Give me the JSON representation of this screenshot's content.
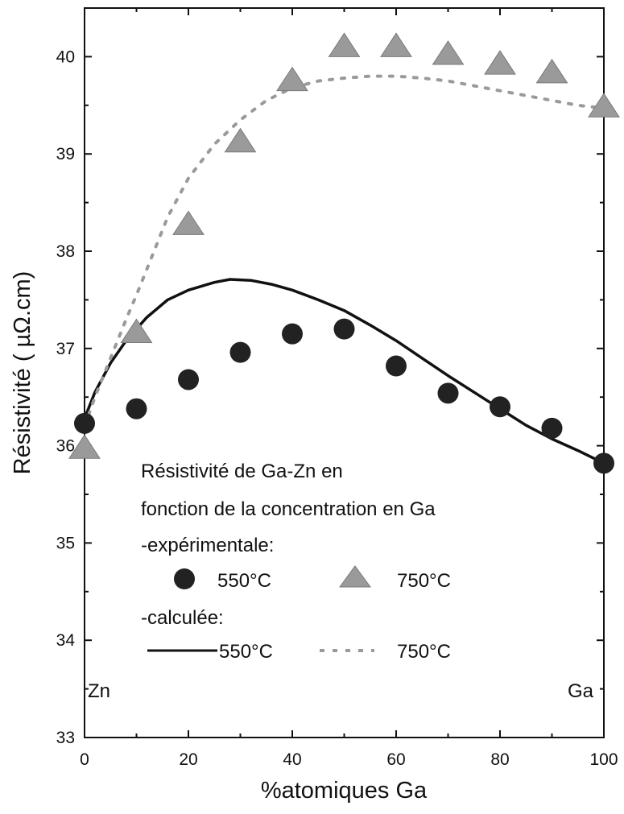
{
  "chart_data": {
    "type": "scatter",
    "title": "",
    "xlabel": "%atomiques Ga",
    "ylabel": "Résistivité ( µΩ.cm)",
    "xlim": [
      0,
      100
    ],
    "ylim": [
      33,
      40.5
    ],
    "x_ticks": [
      0,
      20,
      40,
      60,
      80,
      100
    ],
    "y_ticks": [
      33,
      34,
      35,
      36,
      37,
      38,
      39,
      40
    ],
    "grid": false,
    "legend_position": "bottom-center",
    "legend": {
      "line1": "Résistivité de Ga-Zn en",
      "line2": "fonction de la concentration en Ga",
      "experimental_label": "-expérimentale:",
      "calculated_label": "-calculée:",
      "exp_550_label": "550°C",
      "exp_750_label": "750°C",
      "calc_550_label": "550°C",
      "calc_750_label": "750°C"
    },
    "annotations": {
      "left": "Zn",
      "right": "Ga"
    },
    "series": [
      {
        "name": "550°C",
        "kind": "experimental",
        "marker": "circle",
        "color": "#222222",
        "points": [
          [
            0,
            36.23
          ],
          [
            10,
            36.38
          ],
          [
            20,
            36.68
          ],
          [
            30,
            36.96
          ],
          [
            40,
            37.15
          ],
          [
            50,
            37.2
          ],
          [
            60,
            36.82
          ],
          [
            70,
            36.54
          ],
          [
            80,
            36.4
          ],
          [
            90,
            36.18
          ],
          [
            100,
            35.82
          ]
        ]
      },
      {
        "name": "750°C",
        "kind": "experimental",
        "marker": "triangle",
        "color": "#9a9a9a",
        "points": [
          [
            0,
            35.97
          ],
          [
            10,
            37.16
          ],
          [
            20,
            38.27
          ],
          [
            30,
            39.12
          ],
          [
            40,
            39.75
          ],
          [
            50,
            40.1
          ],
          [
            60,
            40.1
          ],
          [
            70,
            40.02
          ],
          [
            80,
            39.92
          ],
          [
            90,
            39.83
          ],
          [
            100,
            39.48
          ]
        ]
      },
      {
        "name": "550°C",
        "kind": "calculated",
        "style": "solid",
        "color": "#111111",
        "points": [
          [
            0,
            36.28
          ],
          [
            2,
            36.55
          ],
          [
            5,
            36.85
          ],
          [
            8,
            37.08
          ],
          [
            12,
            37.32
          ],
          [
            16,
            37.5
          ],
          [
            20,
            37.6
          ],
          [
            25,
            37.68
          ],
          [
            28,
            37.71
          ],
          [
            32,
            37.7
          ],
          [
            36,
            37.66
          ],
          [
            40,
            37.6
          ],
          [
            45,
            37.5
          ],
          [
            50,
            37.39
          ],
          [
            55,
            37.24
          ],
          [
            60,
            37.08
          ],
          [
            65,
            36.9
          ],
          [
            70,
            36.72
          ],
          [
            75,
            36.55
          ],
          [
            80,
            36.38
          ],
          [
            85,
            36.21
          ],
          [
            90,
            36.07
          ],
          [
            95,
            35.95
          ],
          [
            100,
            35.82
          ]
        ]
      },
      {
        "name": "750°C",
        "kind": "calculated",
        "style": "dotted",
        "color": "#9a9a9a",
        "points": [
          [
            0,
            36.2
          ],
          [
            2,
            36.5
          ],
          [
            5,
            36.9
          ],
          [
            8,
            37.3
          ],
          [
            10,
            37.55
          ],
          [
            13,
            37.95
          ],
          [
            16,
            38.35
          ],
          [
            20,
            38.75
          ],
          [
            25,
            39.1
          ],
          [
            30,
            39.35
          ],
          [
            35,
            39.55
          ],
          [
            40,
            39.68
          ],
          [
            45,
            39.75
          ],
          [
            50,
            39.78
          ],
          [
            55,
            39.8
          ],
          [
            60,
            39.8
          ],
          [
            65,
            39.78
          ],
          [
            70,
            39.75
          ],
          [
            75,
            39.7
          ],
          [
            80,
            39.65
          ],
          [
            85,
            39.6
          ],
          [
            90,
            39.55
          ],
          [
            95,
            39.5
          ],
          [
            100,
            39.47
          ]
        ]
      }
    ]
  }
}
